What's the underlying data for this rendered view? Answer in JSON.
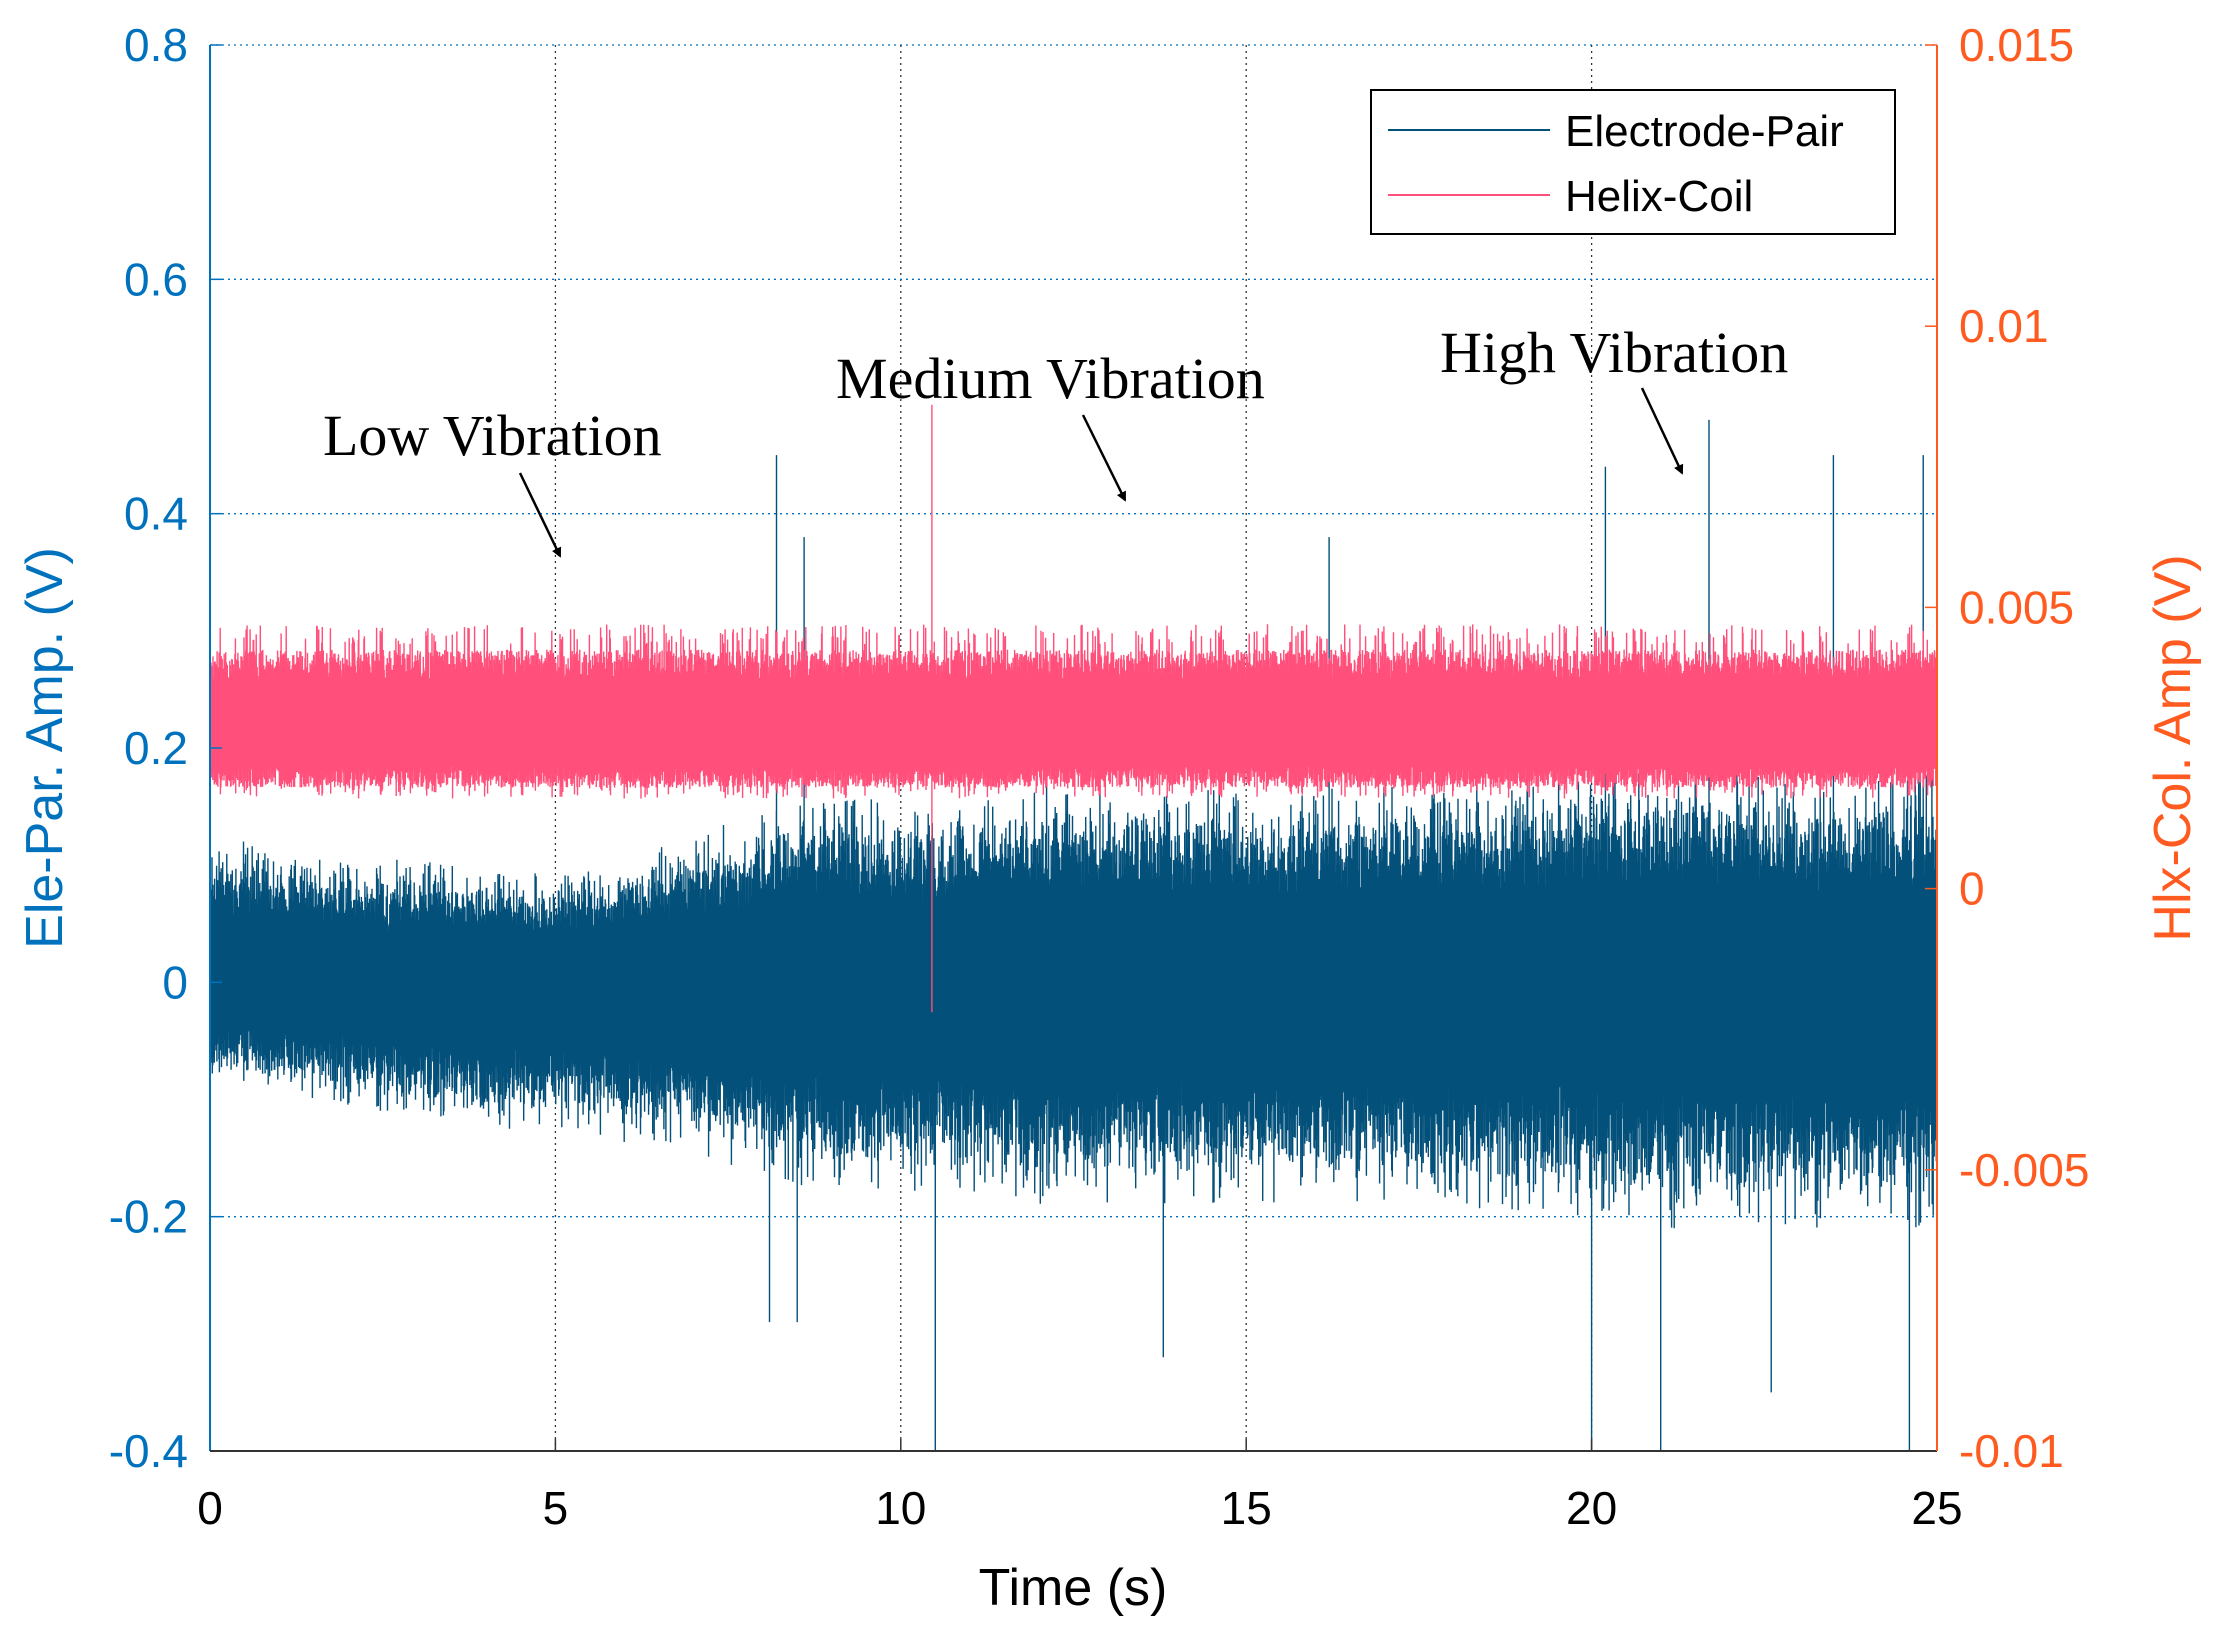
{
  "chart_data": {
    "type": "line",
    "xlabel": "Time (s)",
    "ylabel_left": "Ele-Par. Amp. (V)",
    "ylabel_right": "Hlx-Col. Amp (V)",
    "xlim": [
      0,
      25
    ],
    "ylim_left": [
      -0.4,
      0.8
    ],
    "ylim_right": [
      -0.01,
      0.015
    ],
    "x_ticks": [
      "0",
      "5",
      "10",
      "15",
      "20",
      "25"
    ],
    "y_ticks_left": [
      "0.8",
      "0.6",
      "0.4",
      "0.2",
      "0",
      "-0.2",
      "-0.4"
    ],
    "y_ticks_right": [
      "0.015",
      "0.01",
      "0.005",
      "0",
      "-0.005",
      "-0.01"
    ],
    "grid": true,
    "legend_position": "top-right",
    "colors": {
      "left_axis": "#0072BD",
      "right_axis": "#FF5A1F",
      "electrode": "#03507A",
      "helix": "#FF4F7A"
    },
    "annotations": [
      {
        "text": "Low Vibration",
        "points_to_t": 5
      },
      {
        "text": "Medium Vibration",
        "points_to_t": 13.3
      },
      {
        "text": "High Vibration",
        "points_to_t": 21.4
      }
    ],
    "series": [
      {
        "name": "Electrode-Pair",
        "axis": "left",
        "envelope_t": [
          0,
          1,
          2,
          3,
          4,
          5,
          6,
          7,
          8,
          9,
          10,
          11,
          12,
          13,
          14,
          15,
          16,
          17,
          18,
          19,
          20,
          21,
          22,
          23,
          24,
          25
        ],
        "envelope_upper": [
          0.12,
          0.11,
          0.1,
          0.1,
          0.09,
          0.09,
          0.1,
          0.12,
          0.14,
          0.15,
          0.15,
          0.15,
          0.16,
          0.16,
          0.16,
          0.16,
          0.16,
          0.16,
          0.16,
          0.17,
          0.17,
          0.17,
          0.17,
          0.17,
          0.17,
          0.17
        ],
        "envelope_lower": [
          -0.08,
          -0.09,
          -0.1,
          -0.11,
          -0.12,
          -0.12,
          -0.13,
          -0.14,
          -0.16,
          -0.17,
          -0.17,
          -0.17,
          -0.18,
          -0.18,
          -0.18,
          -0.18,
          -0.18,
          -0.18,
          -0.18,
          -0.19,
          -0.19,
          -0.2,
          -0.2,
          -0.2,
          -0.2,
          -0.2
        ],
        "peaks": [
          [
            8.2,
            0.45
          ],
          [
            8.6,
            0.38
          ],
          [
            8.1,
            -0.29
          ],
          [
            8.5,
            -0.29
          ],
          [
            10.5,
            -0.4
          ],
          [
            13.8,
            -0.32
          ],
          [
            16.2,
            0.38
          ],
          [
            20.0,
            -0.4
          ],
          [
            20.2,
            0.44
          ],
          [
            21.7,
            0.48
          ],
          [
            23.5,
            0.45
          ],
          [
            24.8,
            0.45
          ],
          [
            24.6,
            -0.4
          ],
          [
            22.6,
            -0.35
          ],
          [
            21.0,
            -0.4
          ]
        ]
      },
      {
        "name": "Helix-Coil",
        "axis": "right",
        "center": 0.0029,
        "band_lower": 0.0016,
        "band_upper": 0.0047,
        "peaks": [
          [
            10.45,
            0.0086
          ],
          [
            10.45,
            -0.0022
          ]
        ]
      }
    ]
  }
}
